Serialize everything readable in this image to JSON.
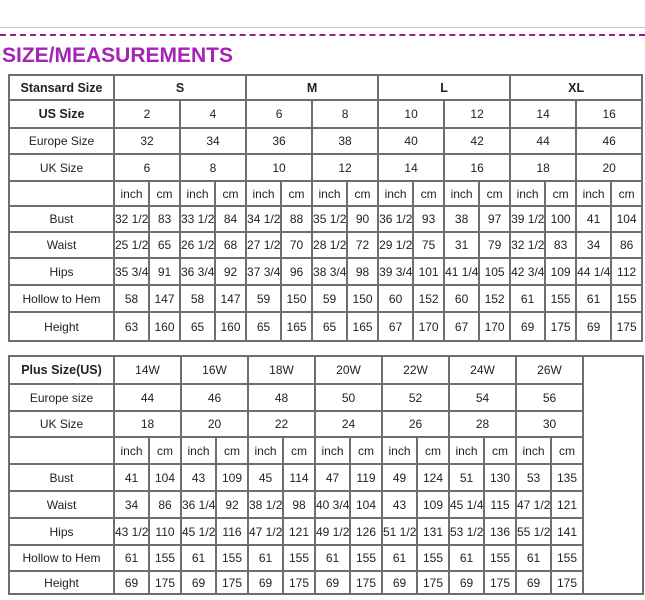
{
  "title": "SIZE/MEASUREMENTS",
  "colors": {
    "title": "#a324b5",
    "dashed_rule": "#9c1c8c",
    "grid": "#6e6e6e"
  },
  "standard_table": {
    "header_label": "Stansard Size",
    "groups": [
      "S",
      "M",
      "L",
      "XL"
    ],
    "us_label": "US Size",
    "us_sizes": [
      "2",
      "4",
      "6",
      "8",
      "10",
      "12",
      "14",
      "16"
    ],
    "europe_label": "Europe Size",
    "europe_sizes": [
      "32",
      "34",
      "36",
      "38",
      "40",
      "42",
      "44",
      "46"
    ],
    "uk_label": "UK Size",
    "uk_sizes": [
      "6",
      "8",
      "10",
      "12",
      "14",
      "16",
      "18",
      "20"
    ],
    "units": [
      "inch",
      "cm"
    ],
    "rows": [
      {
        "label": "Bust",
        "values": [
          "32 1/2",
          "83",
          "33 1/2",
          "84",
          "34 1/2",
          "88",
          "35 1/2",
          "90",
          "36 1/2",
          "93",
          "38",
          "97",
          "39 1/2",
          "100",
          "41",
          "104"
        ]
      },
      {
        "label": "Waist",
        "values": [
          "25 1/2",
          "65",
          "26 1/2",
          "68",
          "27 1/2",
          "70",
          "28 1/2",
          "72",
          "29 1/2",
          "75",
          "31",
          "79",
          "32 1/2",
          "83",
          "34",
          "86"
        ]
      },
      {
        "label": "Hips",
        "values": [
          "35 3/4",
          "91",
          "36 3/4",
          "92",
          "37 3/4",
          "96",
          "38 3/4",
          "98",
          "39 3/4",
          "101",
          "41 1/4",
          "105",
          "42 3/4",
          "109",
          "44 1/4",
          "112"
        ]
      },
      {
        "label": "Hollow to Hem",
        "values": [
          "58",
          "147",
          "58",
          "147",
          "59",
          "150",
          "59",
          "150",
          "60",
          "152",
          "60",
          "152",
          "61",
          "155",
          "61",
          "155"
        ]
      },
      {
        "label": "Height",
        "values": [
          "63",
          "160",
          "65",
          "160",
          "65",
          "165",
          "65",
          "165",
          "67",
          "170",
          "67",
          "170",
          "69",
          "175",
          "69",
          "175"
        ]
      }
    ]
  },
  "plus_table": {
    "header_label": "Plus Size(US)",
    "us_sizes": [
      "14W",
      "16W",
      "18W",
      "20W",
      "22W",
      "24W",
      "26W"
    ],
    "europe_label": "Europe size",
    "europe_sizes": [
      "44",
      "46",
      "48",
      "50",
      "52",
      "54",
      "56"
    ],
    "uk_label": "UK Size",
    "uk_sizes": [
      "18",
      "20",
      "22",
      "24",
      "26",
      "28",
      "30"
    ],
    "units": [
      "inch",
      "cm"
    ],
    "rows": [
      {
        "label": "Bust",
        "values": [
          "41",
          "104",
          "43",
          "109",
          "45",
          "114",
          "47",
          "119",
          "49",
          "124",
          "51",
          "130",
          "53",
          "135"
        ]
      },
      {
        "label": "Waist",
        "values": [
          "34",
          "86",
          "36 1/4",
          "92",
          "38 1/2",
          "98",
          "40 3/4",
          "104",
          "43",
          "109",
          "45 1/4",
          "115",
          "47 1/2",
          "121"
        ]
      },
      {
        "label": "Hips",
        "values": [
          "43 1/2",
          "110",
          "45 1/2",
          "116",
          "47 1/2",
          "121",
          "49 1/2",
          "126",
          "51 1/2",
          "131",
          "53 1/2",
          "136",
          "55 1/2",
          "141"
        ]
      },
      {
        "label": "Hollow to Hem",
        "values": [
          "61",
          "155",
          "61",
          "155",
          "61",
          "155",
          "61",
          "155",
          "61",
          "155",
          "61",
          "155",
          "61",
          "155"
        ]
      },
      {
        "label": "Height",
        "values": [
          "69",
          "175",
          "69",
          "175",
          "69",
          "175",
          "69",
          "175",
          "69",
          "175",
          "69",
          "175",
          "69",
          "175"
        ]
      }
    ]
  }
}
